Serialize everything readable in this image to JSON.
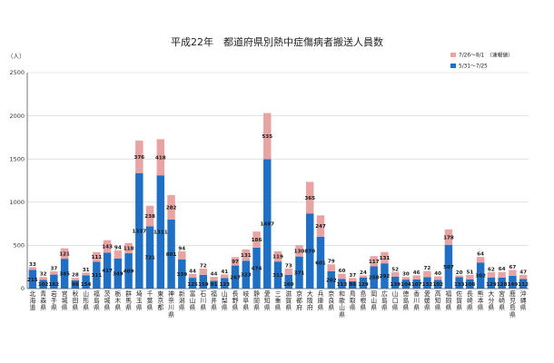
{
  "chart_data": {
    "type": "bar",
    "stacked": true,
    "title": "平成22年　都道府県別熱中症傷病者搬送人員数",
    "unit_label": "（人）",
    "ylim": [
      0,
      2500
    ],
    "yticks": [
      0,
      500,
      1000,
      1500,
      2000,
      2500
    ],
    "grid": true,
    "legend_position": "top-right",
    "categories": [
      "北海道",
      "青森県",
      "岩手県",
      "宮城県",
      "秋田県",
      "山形県",
      "福島県",
      "茨城県",
      "栃木県",
      "群馬県",
      "埼玉県",
      "千葉県",
      "東京都",
      "神奈川県",
      "新潟県",
      "富山県",
      "石川県",
      "福井県",
      "山梨県",
      "長野県",
      "岐阜県",
      "静岡県",
      "愛知県",
      "三重県",
      "滋賀県",
      "京都府",
      "大阪府",
      "兵庫県",
      "奈良県",
      "和歌山県",
      "鳥取県",
      "島根県",
      "岡山県",
      "広島県",
      "山口県",
      "徳島県",
      "香川県",
      "愛媛県",
      "高知県",
      "福岡県",
      "佐賀県",
      "長崎県",
      "熊本県",
      "大分県",
      "宮崎県",
      "鹿児島県",
      "沖縄県"
    ],
    "series": [
      {
        "name": "5/31～7/25",
        "color": "#1f6fc5",
        "values": [
          215,
          102,
          162,
          345,
          96,
          154,
          311,
          417,
          349,
          409,
          1337,
          721,
          1311,
          801,
          339,
          125,
          159,
          91,
          123,
          267,
          323,
          474,
          1497,
          313,
          160,
          371,
          870,
          601,
          202,
          113,
          86,
          129,
          258,
          292,
          139,
          104,
          107,
          132,
          102,
          507,
          133,
          108,
          302,
          129,
          128,
          149,
          112
        ]
      },
      {
        "name": "7/26～8/1　（速報値）",
        "color": "#e8a3a3",
        "values": [
          33,
          32,
          37,
          121,
          28,
          31,
          111,
          143,
          94,
          118,
          376,
          238,
          418,
          282,
          94,
          44,
          72,
          44,
          41,
          97,
          131,
          186,
          535,
          119,
          73,
          130,
          365,
          247,
          79,
          60,
          37,
          24,
          117,
          131,
          52,
          30,
          46,
          72,
          40,
          178,
          20,
          51,
          64,
          62,
          64,
          67,
          47
        ]
      }
    ]
  }
}
